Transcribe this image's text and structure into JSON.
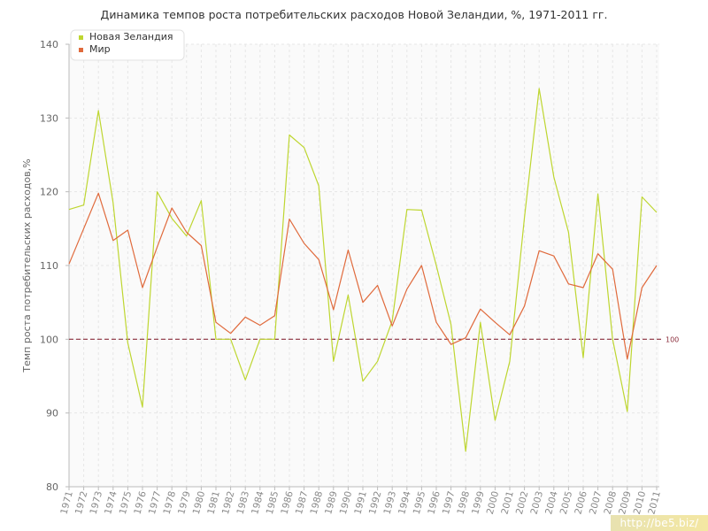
{
  "chart_data": {
    "type": "line",
    "title": "Динамика темпов роста потребительских расходов Новой Зеландии, %, 1971-2011 гг.",
    "xlabel": "",
    "ylabel": "Темп роста потребительских расходов,%",
    "ylim": [
      80,
      140
    ],
    "yticks": [
      "80",
      "90",
      "100",
      "110",
      "120",
      "130",
      "140"
    ],
    "grid": true,
    "legend_position": "top-left",
    "categories": [
      "1971",
      "1972",
      "1973",
      "1974",
      "1975",
      "1976",
      "1977",
      "1978",
      "1979",
      "1980",
      "1981",
      "1982",
      "1983",
      "1984",
      "1985",
      "1986",
      "1987",
      "1988",
      "1989",
      "1990",
      "1991",
      "1992",
      "1993",
      "1994",
      "1995",
      "1996",
      "1997",
      "1998",
      "1999",
      "2000",
      "2001",
      "2002",
      "2003",
      "2004",
      "2005",
      "2006",
      "2007",
      "2008",
      "2009",
      "2010",
      "2011"
    ],
    "series": [
      {
        "name": "Новая Зеландия",
        "color": "#bed630",
        "values": [
          117.6,
          118.2,
          131,
          118.5,
          99.5,
          90.8,
          120,
          116.4,
          114,
          118.8,
          100,
          100,
          94.5,
          100,
          100,
          127.7,
          126,
          120.8,
          97,
          106,
          94.3,
          97,
          102.5,
          117.6,
          117.5,
          110,
          102,
          84.8,
          102.3,
          89,
          97,
          116.5,
          134,
          122,
          114.5,
          97.5,
          119.7,
          100,
          90.2,
          119.3,
          117.2
        ]
      },
      {
        "name": "Мир",
        "color": "#e06a3c",
        "values": [
          110.2,
          115,
          119.8,
          113.4,
          114.8,
          107,
          112.5,
          117.8,
          114.5,
          112.7,
          102.3,
          100.8,
          103,
          101.9,
          103.2,
          116.3,
          113,
          110.8,
          104,
          112.1,
          105,
          107.3,
          101.8,
          106.8,
          110,
          102.3,
          99.3,
          100.2,
          104.1,
          102.3,
          100.6,
          104.5,
          112,
          111.3,
          107.5,
          107,
          111.6,
          109.5,
          97.3,
          107,
          110
        ]
      }
    ],
    "reference_line": {
      "value": 100,
      "label": "100",
      "color": "#8b2e3c"
    }
  },
  "watermark": "http://be5.biz/"
}
